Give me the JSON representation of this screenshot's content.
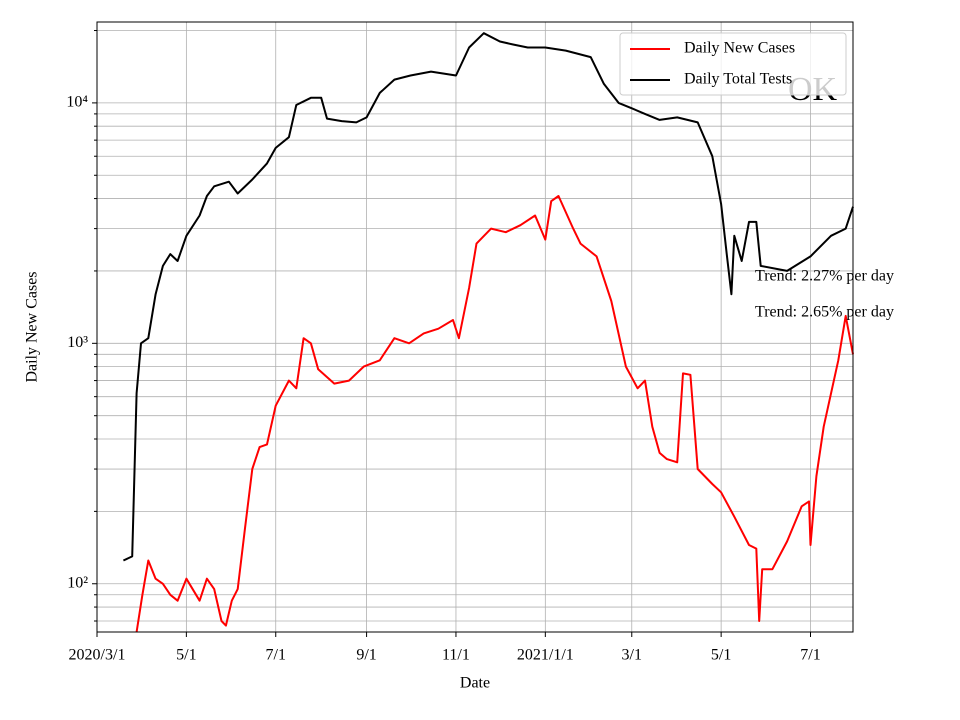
{
  "chart_data": {
    "type": "line",
    "xlabel": "Date",
    "ylabel": "Daily New Cases",
    "yscale": "log",
    "grid": true,
    "legend": "upper right",
    "xlim": [
      "2020-03-01",
      "2021-07-30"
    ],
    "xticks": [
      {
        "value": "2020-03-01",
        "label": "2020/3/1"
      },
      {
        "value": "2020-05-01",
        "label": "5/1"
      },
      {
        "value": "2020-07-01",
        "label": "7/1"
      },
      {
        "value": "2020-09-01",
        "label": "9/1"
      },
      {
        "value": "2020-11-01",
        "label": "11/1"
      },
      {
        "value": "2021-01-01",
        "label": "2021/1/1"
      },
      {
        "value": "2021-03-01",
        "label": "3/1"
      },
      {
        "value": "2021-05-01",
        "label": "5/1"
      },
      {
        "value": "2021-07-01",
        "label": "7/1"
      }
    ],
    "ylim": [
      63,
      21700
    ],
    "yticks": [
      {
        "value": 100,
        "label": "10²"
      },
      {
        "value": 1000,
        "label": "10³"
      },
      {
        "value": 10000,
        "label": "10⁴"
      }
    ],
    "yminorticks": [
      70,
      80,
      90,
      200,
      300,
      400,
      500,
      600,
      700,
      800,
      900,
      2000,
      3000,
      4000,
      5000,
      6000,
      7000,
      8000,
      9000,
      20000
    ],
    "series": [
      {
        "name": "Daily New Cases",
        "color": "#ff0000",
        "x": [
          "2020-03-28",
          "2020-04-01",
          "2020-04-05",
          "2020-04-10",
          "2020-04-15",
          "2020-04-20",
          "2020-04-25",
          "2020-05-01",
          "2020-05-10",
          "2020-05-15",
          "2020-05-20",
          "2020-05-25",
          "2020-05-28",
          "2020-06-01",
          "2020-06-05",
          "2020-06-10",
          "2020-06-15",
          "2020-06-20",
          "2020-06-25",
          "2020-07-01",
          "2020-07-10",
          "2020-07-15",
          "2020-07-20",
          "2020-07-25",
          "2020-07-30",
          "2020-08-10",
          "2020-08-20",
          "2020-08-30",
          "2020-09-10",
          "2020-09-20",
          "2020-09-30",
          "2020-10-10",
          "2020-10-20",
          "2020-10-30",
          "2020-11-03",
          "2020-11-10",
          "2020-11-15",
          "2020-11-25",
          "2020-12-05",
          "2020-12-15",
          "2020-12-25",
          "2021-01-01",
          "2021-01-05",
          "2021-01-10",
          "2021-01-20",
          "2021-01-25",
          "2021-02-05",
          "2021-02-15",
          "2021-02-25",
          "2021-03-05",
          "2021-03-10",
          "2021-03-15",
          "2021-03-20",
          "2021-03-25",
          "2021-04-01",
          "2021-04-05",
          "2021-04-10",
          "2021-04-15",
          "2021-04-25",
          "2021-05-01",
          "2021-05-10",
          "2021-05-20",
          "2021-05-25",
          "2021-05-27",
          "2021-05-29",
          "2021-06-05",
          "2021-06-15",
          "2021-06-25",
          "2021-06-30",
          "2021-07-01",
          "2021-07-05",
          "2021-07-10",
          "2021-07-20",
          "2021-07-25",
          "2021-07-30"
        ],
        "values": [
          63,
          90,
          125,
          105,
          100,
          90,
          85,
          105,
          85,
          105,
          95,
          70,
          67,
          85,
          95,
          170,
          300,
          370,
          380,
          550,
          700,
          650,
          1050,
          1000,
          780,
          680,
          700,
          800,
          850,
          1050,
          1000,
          1100,
          1150,
          1250,
          1050,
          1700,
          2600,
          3000,
          2900,
          3100,
          3400,
          2700,
          3900,
          4100,
          3000,
          2600,
          2300,
          1500,
          800,
          650,
          700,
          450,
          350,
          330,
          320,
          750,
          740,
          300,
          260,
          240,
          190,
          145,
          140,
          70,
          115,
          115,
          150,
          210,
          220,
          145,
          280,
          450,
          850,
          1300,
          900
        ]
      },
      {
        "name": "Daily Total Tests",
        "color": "#000000",
        "x": [
          "2020-03-19",
          "2020-03-25",
          "2020-03-28",
          "2020-03-31",
          "2020-04-05",
          "2020-04-10",
          "2020-04-15",
          "2020-04-20",
          "2020-04-25",
          "2020-05-01",
          "2020-05-10",
          "2020-05-15",
          "2020-05-20",
          "2020-05-30",
          "2020-06-05",
          "2020-06-15",
          "2020-06-25",
          "2020-07-01",
          "2020-07-10",
          "2020-07-15",
          "2020-07-25",
          "2020-08-01",
          "2020-08-05",
          "2020-08-15",
          "2020-08-25",
          "2020-09-01",
          "2020-09-10",
          "2020-09-20",
          "2020-10-01",
          "2020-10-15",
          "2020-11-01",
          "2020-11-10",
          "2020-11-20",
          "2020-12-01",
          "2020-12-10",
          "2020-12-20",
          "2021-01-01",
          "2021-01-15",
          "2021-02-01",
          "2021-02-10",
          "2021-02-20",
          "2021-03-01",
          "2021-03-10",
          "2021-03-20",
          "2021-04-01",
          "2021-04-15",
          "2021-04-25",
          "2021-05-01",
          "2021-05-05",
          "2021-05-08",
          "2021-05-10",
          "2021-05-15",
          "2021-05-20",
          "2021-05-25",
          "2021-05-28",
          "2021-06-15",
          "2021-07-01",
          "2021-07-15",
          "2021-07-25",
          "2021-07-30"
        ],
        "values": [
          125,
          130,
          620,
          1000,
          1050,
          1600,
          2100,
          2350,
          2200,
          2800,
          3400,
          4100,
          4500,
          4700,
          4200,
          4800,
          5600,
          6500,
          7200,
          9800,
          10500,
          10500,
          8600,
          8400,
          8300,
          8700,
          11000,
          12500,
          13000,
          13500,
          13000,
          17000,
          19500,
          18000,
          17500,
          17000,
          17000,
          16500,
          15500,
          12000,
          10000,
          9500,
          9000,
          8500,
          8700,
          8300,
          6000,
          3800,
          2300,
          1600,
          2800,
          2200,
          3200,
          3200,
          2100,
          2000,
          2300,
          2800,
          3000,
          3700
        ]
      }
    ],
    "annotations": [
      "Trend: 2.27% per day",
      "Trend: 2.65% per day",
      "OK"
    ]
  }
}
